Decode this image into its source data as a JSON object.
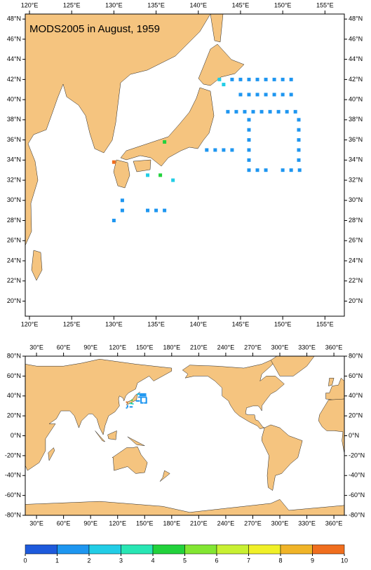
{
  "title": "MODS2005 in August, 1959",
  "regional_map": {
    "xlim": [
      119.5,
      157.3
    ],
    "ylim": [
      18.5,
      48.5
    ],
    "xticks": [
      {
        "value": 120,
        "label": "120°E"
      },
      {
        "value": 125,
        "label": "125°E"
      },
      {
        "value": 130,
        "label": "130°E"
      },
      {
        "value": 135,
        "label": "135°E"
      },
      {
        "value": 140,
        "label": "140°E"
      },
      {
        "value": 145,
        "label": "145°E"
      },
      {
        "value": 150,
        "label": "150°E"
      },
      {
        "value": 155,
        "label": "155°E"
      }
    ],
    "yticks": [
      {
        "value": 20,
        "label": "20°N"
      },
      {
        "value": 22,
        "label": "22°N"
      },
      {
        "value": 24,
        "label": "24°N"
      },
      {
        "value": 26,
        "label": "26°N"
      },
      {
        "value": 28,
        "label": "28°N"
      },
      {
        "value": 30,
        "label": "30°N"
      },
      {
        "value": 32,
        "label": "32°N"
      },
      {
        "value": 34,
        "label": "34°N"
      },
      {
        "value": 36,
        "label": "36°N"
      },
      {
        "value": 38,
        "label": "38°N"
      },
      {
        "value": 40,
        "label": "40°N"
      },
      {
        "value": 42,
        "label": "42°N"
      },
      {
        "value": 44,
        "label": "44°N"
      },
      {
        "value": 46,
        "label": "46°N"
      },
      {
        "value": 48,
        "label": "48°N"
      }
    ]
  },
  "global_map": {
    "xlim": [
      17.5,
      371.6
    ],
    "ylim": [
      -80,
      80
    ],
    "xticks": [
      {
        "value": 30,
        "label": "30°E"
      },
      {
        "value": 60,
        "label": "60°E"
      },
      {
        "value": 90,
        "label": "90°E"
      },
      {
        "value": 120,
        "label": "120°E"
      },
      {
        "value": 150,
        "label": "150°E"
      },
      {
        "value": 180,
        "label": "180°E"
      },
      {
        "value": 210,
        "label": "210°E"
      },
      {
        "value": 240,
        "label": "240°E"
      },
      {
        "value": 270,
        "label": "270°E"
      },
      {
        "value": 300,
        "label": "300°E"
      },
      {
        "value": 330,
        "label": "330°E"
      },
      {
        "value": 360,
        "label": "360°E"
      }
    ],
    "yticks": [
      {
        "value": -80,
        "label": "-80°N"
      },
      {
        "value": -60,
        "label": "-60°N"
      },
      {
        "value": -40,
        "label": "-40°N"
      },
      {
        "value": -20,
        "label": "-20°N"
      },
      {
        "value": 0,
        "label": "0°N"
      },
      {
        "value": 20,
        "label": "20°N"
      },
      {
        "value": 40,
        "label": "40°N"
      },
      {
        "value": 60,
        "label": "60°N"
      },
      {
        "value": 80,
        "label": "80°N"
      }
    ]
  },
  "observations": {
    "lon": [
      144,
      145,
      146,
      147,
      148,
      149,
      150,
      151,
      145,
      146,
      147,
      148,
      149,
      150,
      151,
      143.5,
      144.5,
      145.5,
      146.5,
      147.5,
      148.5,
      149.5,
      150.5,
      151.5,
      141,
      142,
      143,
      144,
      146,
      147,
      148,
      150,
      151,
      152,
      151.9,
      151.9,
      151.9,
      151.9,
      151.9,
      146,
      146,
      146,
      146,
      146,
      134,
      135,
      136,
      131,
      131,
      130,
      136,
      130,
      142.5,
      143,
      135.5,
      137,
      134
    ],
    "lat": [
      42,
      42,
      42,
      42,
      42,
      42,
      42,
      42,
      40.5,
      40.5,
      40.5,
      40.5,
      40.5,
      40.5,
      40.5,
      38.8,
      38.8,
      38.8,
      38.8,
      38.8,
      38.8,
      38.8,
      38.8,
      38.8,
      35,
      35,
      35,
      35,
      33,
      33,
      33,
      33,
      33,
      33,
      38,
      37,
      36,
      35,
      34,
      38,
      37,
      36,
      35,
      34,
      29,
      29,
      29,
      30,
      29,
      28,
      35.8,
      33.8,
      42,
      41.5,
      32.5,
      32,
      32.5
    ],
    "count": [
      1,
      1,
      1,
      1,
      1,
      1,
      1,
      1,
      1,
      1,
      1,
      1,
      1,
      1,
      1,
      1,
      1,
      1,
      1,
      1,
      1,
      1,
      1,
      1,
      1,
      1,
      1,
      1,
      1,
      1,
      1,
      1,
      1,
      1,
      1,
      1,
      1,
      1,
      1,
      1,
      1,
      1,
      1,
      1,
      1,
      1,
      1,
      1,
      1,
      1,
      4,
      9,
      2,
      2,
      4,
      2,
      2
    ]
  },
  "colorbar": {
    "levels": [
      0,
      1,
      2,
      3,
      4,
      5,
      6,
      7,
      8,
      9,
      10
    ],
    "colors": [
      "#1e5adc",
      "#1e96f0",
      "#22cde6",
      "#28e6b4",
      "#22d23c",
      "#82e632",
      "#c8f032",
      "#f0f028",
      "#f0b428",
      "#f06e1e"
    ]
  }
}
